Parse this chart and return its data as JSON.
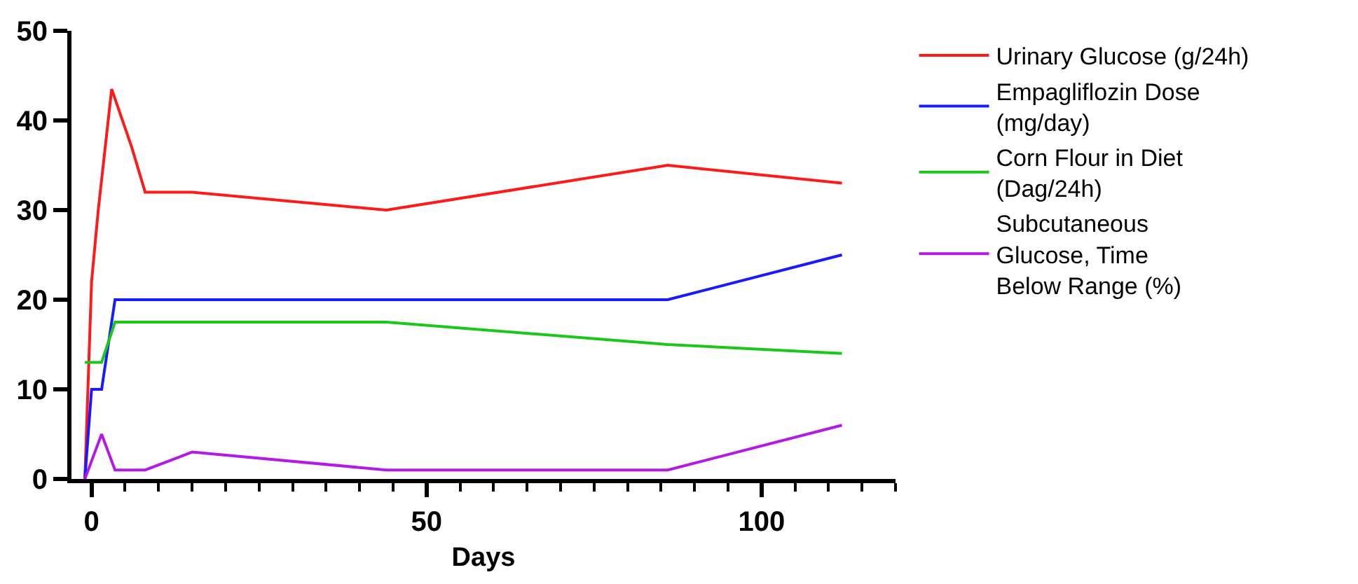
{
  "chart_data": {
    "type": "line",
    "xlabel": "Days",
    "xlim": [
      -3,
      120
    ],
    "xticks": [
      0,
      50,
      100
    ],
    "ylim": [
      0,
      50
    ],
    "yticks": [
      0,
      10,
      20,
      30,
      40,
      50
    ],
    "legend": "right",
    "marker": "none",
    "line_style": "solid",
    "series": [
      {
        "name": "Urinary Glucose (g/24h)",
        "color": "#ff1a1a",
        "x": [
          -1,
          0,
          1,
          3,
          6,
          8,
          15,
          44,
          86,
          112
        ],
        "values": [
          0,
          22,
          30,
          43.5,
          37,
          32,
          32,
          30,
          35,
          33
        ]
      },
      {
        "name": "Empagliflozin Dose\n(mg/day)",
        "color": "#1a1aff",
        "x": [
          -1,
          0,
          1.5,
          3.5,
          86,
          112
        ],
        "values": [
          0,
          10,
          10,
          20,
          20,
          25
        ]
      },
      {
        "name": "Corn Flour in Diet\n(Dag/24h)",
        "color": "#1ac81a",
        "x": [
          -1,
          1.5,
          3.5,
          44,
          86,
          112
        ],
        "values": [
          13,
          13,
          17.5,
          17.5,
          15,
          14
        ]
      },
      {
        "name": "Subcutaneous\nGlucose, Time\nBelow Range (%)",
        "color": "#b41ae6",
        "x": [
          -1,
          0,
          1.5,
          3.5,
          8,
          15,
          44,
          86,
          112
        ],
        "values": [
          0,
          2,
          5,
          1,
          1,
          3,
          1,
          1,
          6
        ]
      }
    ]
  }
}
